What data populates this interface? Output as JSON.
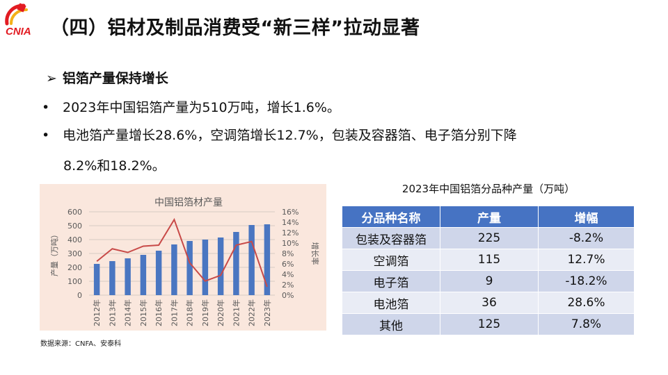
{
  "page": {
    "logo_text": "CNIA",
    "title": "（四）铝材及制品消费受“新三样”拉动显著",
    "subhead_arrow": "➢",
    "subhead": "铝箔产量保持增长",
    "bullet_char": "•",
    "bullets": [
      "2023年中国铝箔产量为510万吨，增长1.6%。",
      "电池箔产量增长28.6%，空调箔增长12.7%，包装及容器箔、电子箔分别下降",
      "8.2%和18.2%。"
    ],
    "source": "数据来源：CNFA、安泰科"
  },
  "chart_data": {
    "type": "bar",
    "title": "中国铝箔材产量",
    "categories": [
      "2012年",
      "2013年",
      "2014年",
      "2015年",
      "2016年",
      "2017年",
      "2018年",
      "2019年",
      "2020年",
      "2021年",
      "2022年",
      "2023年"
    ],
    "series": [
      {
        "name": "产量",
        "kind": "bar",
        "axis": "left",
        "values": [
          225,
          245,
          265,
          290,
          320,
          365,
          390,
          400,
          415,
          455,
          505,
          510
        ]
      },
      {
        "name": "增长率",
        "kind": "line",
        "axis": "right",
        "values": [
          6.5,
          8.9,
          8.2,
          9.4,
          9.6,
          14.5,
          6.2,
          2.7,
          3.8,
          9.6,
          10.3,
          1.6
        ]
      }
    ],
    "ylabel": "产量（万吨）",
    "y2label": "增长率",
    "ylim": [
      0,
      600
    ],
    "yticks": [
      0,
      100,
      200,
      300,
      400,
      500,
      600
    ],
    "y2lim": [
      0,
      16
    ],
    "y2ticks": [
      "0%",
      "2%",
      "4%",
      "6%",
      "8%",
      "10%",
      "12%",
      "14%",
      "16%"
    ],
    "colors": {
      "bar": "#4a76c1",
      "line": "#c84a48",
      "grid": "#d6cbc4",
      "background": "#fae7dd",
      "text": "#595959"
    }
  },
  "table": {
    "title": "2023年中国铝箔分品种产量（万吨）",
    "headers": [
      "分品种名称",
      "产量",
      "增幅"
    ],
    "rows": [
      [
        "包装及容器箔",
        "225",
        "-8.2%"
      ],
      [
        "空调箔",
        "115",
        "12.7%"
      ],
      [
        "电子箔",
        "9",
        "-18.2%"
      ],
      [
        "电池箔",
        "36",
        "28.6%"
      ],
      [
        "其他",
        "125",
        "7.8%"
      ]
    ],
    "colors": {
      "header": "#4673c3",
      "odd": "#cfd6ea",
      "even": "#e9ecf5"
    }
  }
}
